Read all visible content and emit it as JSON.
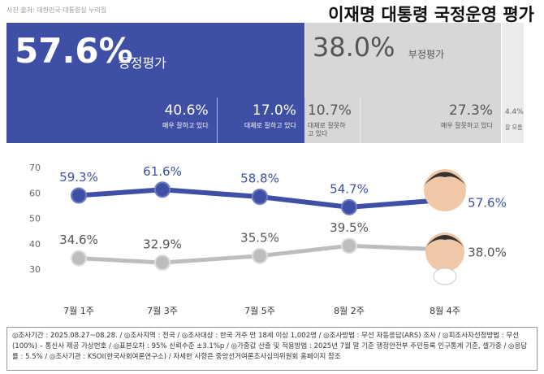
{
  "header": {
    "credit": "사진 출처: 대한민국 대통령실 누리집",
    "title": "이재명 대통령 국정운영 평가"
  },
  "chart_data": [
    {
      "type": "stacked-bar",
      "groups": {
        "names": [
          "긍정평가",
          "부정평가",
          "잘 모름"
        ],
        "values": [
          57.6,
          38.0,
          4.4
        ],
        "value_labels": [
          "57.6%",
          "38.0%",
          "4.4%"
        ],
        "colors": [
          "#3f4fa5",
          "#d7d7d7",
          "#ececec"
        ]
      },
      "segments": {
        "names": [
          "매우 잘하고 있다",
          "대체로 잘하고 있다",
          "대체로 잘못하고 있다",
          "매우 잘못하고 있다"
        ],
        "values": [
          40.6,
          17.0,
          10.7,
          27.3
        ],
        "value_labels": [
          "40.6%",
          "17.0%",
          "10.7%",
          "27.3%"
        ],
        "colors": [
          "#3f4fa5",
          "#3f4fa5",
          "#d7d7d7",
          "#d7d7d7"
        ]
      }
    },
    {
      "type": "line",
      "categories": [
        "7월 1주",
        "7월 3주",
        "7월 5주",
        "8월 2주",
        "8월 4주"
      ],
      "series": [
        {
          "name": "긍정평가",
          "color": "#3f4fa5",
          "values": [
            59.3,
            61.6,
            58.8,
            54.7,
            57.6
          ],
          "value_labels": [
            "59.3%",
            "61.6%",
            "58.8%",
            "54.7%",
            "57.6%"
          ]
        },
        {
          "name": "부정평가",
          "color": "#bdbdbd",
          "values": [
            34.6,
            32.9,
            35.5,
            39.5,
            38.0
          ],
          "value_labels": [
            "34.6%",
            "32.9%",
            "35.5%",
            "39.5%",
            "38.0%"
          ]
        }
      ],
      "ylim": [
        30,
        70
      ],
      "yticks": [
        30,
        40,
        50,
        60,
        70
      ]
    }
  ],
  "footer": "◎조사기간 : 2025.08.27~08.28. / ◎조사지역 : 전국 / ◎조사대상 : 한국 거주 만 18세 이상 1,002명 / ◎조사방법 : 무선 자동응답(ARS) 조사 / ◎피조사자선정방법 : 무선(100%) – 통신사 제공 가상번호 / ◎표본오차 : 95% 신뢰수준 ±3.1%p / ◎가중값 산출 및 적용방법 : 2025년 7월 말 기준 행정안전부 주민등록 인구통계 기준, 셀가중 / ◎응답률 : 5.5% / ◎조사기관 : KSOI(한국사회여론연구소) / 자세한 사항은 중앙선거여론조사심의위원회 홈페이지 참조"
}
